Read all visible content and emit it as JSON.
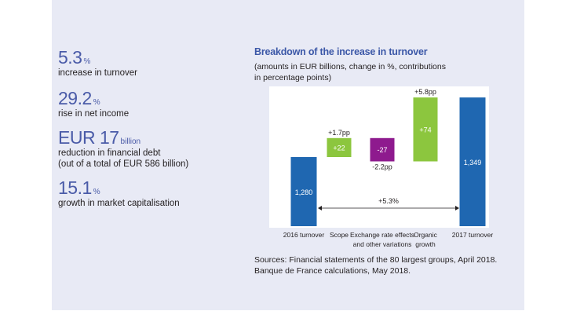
{
  "kpis": [
    {
      "value": "5.3",
      "unit": "%",
      "desc": "increase in turnover"
    },
    {
      "value": "29.2",
      "unit": "%",
      "desc": "rise in net income"
    },
    {
      "value": "EUR 17",
      "unit": "billion",
      "desc": "reduction in financial debt\n(out of a total of EUR 586 billion)"
    },
    {
      "value": "15.1",
      "unit": "%",
      "desc": "growth in market capitalisation"
    }
  ],
  "chart_title": "Breakdown of the increase in turnover",
  "chart_subtitle": "(amounts in EUR billions, change in %, contributions\nin percentage points)",
  "source": "Sources: Financial statements of the 80 largest groups, April 2018.\nBanque de France calculations, May 2018.",
  "chart_data": {
    "type": "bar",
    "subtype": "waterfall",
    "title": "Breakdown of the increase in turnover",
    "categories": [
      "2016 turnover",
      "Scope",
      "Exchange rate effects and other variations",
      "Organic growth",
      "2017 turnover"
    ],
    "category_labels": [
      [
        "2016 turnover"
      ],
      [
        "Scope"
      ],
      [
        "Exchange rate effects",
        "and other variations"
      ],
      [
        "Organic",
        "growth"
      ],
      [
        "2017 turnover"
      ]
    ],
    "values": [
      1280,
      22,
      -27,
      74,
      1349
    ],
    "value_labels": [
      "1,280",
      "+22",
      "-27",
      "+74",
      "1,349"
    ],
    "contributions": [
      "",
      "+1.7pp",
      "-2.2pp",
      "+5.8pp",
      ""
    ],
    "kinds": [
      "total",
      "delta",
      "delta",
      "delta",
      "total"
    ],
    "colors": {
      "total": "#1f67b1",
      "positive": "#8cc63e",
      "negative": "#8e1a8e"
    },
    "total_change_label": "+5.3%",
    "ylim": [
      1200,
      1360
    ]
  }
}
